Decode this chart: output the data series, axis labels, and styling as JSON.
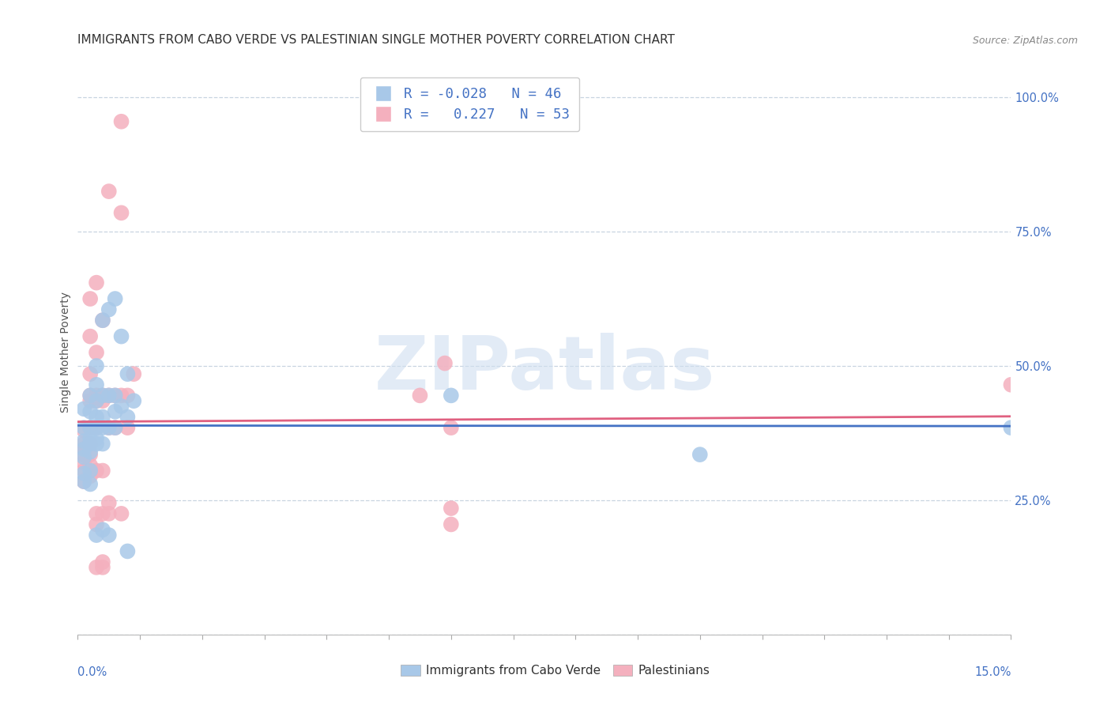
{
  "title": "IMMIGRANTS FROM CABO VERDE VS PALESTINIAN SINGLE MOTHER POVERTY CORRELATION CHART",
  "source": "Source: ZipAtlas.com",
  "ylabel": "Single Mother Poverty",
  "x_min": 0.0,
  "x_max": 0.15,
  "y_min": 0.0,
  "y_max": 1.05,
  "y_ticks": [
    0.0,
    0.25,
    0.5,
    0.75,
    1.0
  ],
  "y_tick_labels": [
    "",
    "25.0%",
    "50.0%",
    "75.0%",
    "100.0%"
  ],
  "legend_entries": [
    {
      "label": "Immigrants from Cabo Verde",
      "R": "-0.028",
      "N": "46",
      "color": "#A8C8E8"
    },
    {
      "label": "Palestinians",
      "R": "0.227",
      "N": "53",
      "color": "#F4B0BE"
    }
  ],
  "cabo_verde_color": "#A8C8E8",
  "palestinian_color": "#F4B0BE",
  "cabo_verde_line_color": "#4472C4",
  "palestinian_line_color": "#E06080",
  "watermark_text": "ZIPatlas",
  "watermark_color": "#D0DFF0",
  "background_color": "#ffffff",
  "grid_color": "#C8D4E0",
  "title_fontsize": 11,
  "axis_label_fontsize": 10,
  "tick_fontsize": 10.5,
  "cabo_verde_points": [
    [
      0.001,
      0.385
    ],
    [
      0.001,
      0.42
    ],
    [
      0.001,
      0.36
    ],
    [
      0.001,
      0.345
    ],
    [
      0.001,
      0.33
    ],
    [
      0.001,
      0.3
    ],
    [
      0.001,
      0.285
    ],
    [
      0.002,
      0.445
    ],
    [
      0.002,
      0.415
    ],
    [
      0.002,
      0.385
    ],
    [
      0.002,
      0.365
    ],
    [
      0.002,
      0.355
    ],
    [
      0.002,
      0.34
    ],
    [
      0.002,
      0.305
    ],
    [
      0.002,
      0.28
    ],
    [
      0.003,
      0.5
    ],
    [
      0.003,
      0.465
    ],
    [
      0.003,
      0.435
    ],
    [
      0.003,
      0.405
    ],
    [
      0.003,
      0.385
    ],
    [
      0.003,
      0.365
    ],
    [
      0.003,
      0.355
    ],
    [
      0.003,
      0.185
    ],
    [
      0.004,
      0.585
    ],
    [
      0.004,
      0.445
    ],
    [
      0.004,
      0.405
    ],
    [
      0.004,
      0.385
    ],
    [
      0.004,
      0.355
    ],
    [
      0.004,
      0.195
    ],
    [
      0.005,
      0.605
    ],
    [
      0.005,
      0.445
    ],
    [
      0.005,
      0.385
    ],
    [
      0.005,
      0.185
    ],
    [
      0.006,
      0.625
    ],
    [
      0.006,
      0.445
    ],
    [
      0.006,
      0.415
    ],
    [
      0.006,
      0.385
    ],
    [
      0.007,
      0.555
    ],
    [
      0.007,
      0.425
    ],
    [
      0.008,
      0.485
    ],
    [
      0.008,
      0.405
    ],
    [
      0.008,
      0.155
    ],
    [
      0.009,
      0.435
    ],
    [
      0.06,
      0.445
    ],
    [
      0.1,
      0.335
    ],
    [
      0.15,
      0.385
    ]
  ],
  "palestinian_points": [
    [
      0.001,
      0.38
    ],
    [
      0.001,
      0.355
    ],
    [
      0.001,
      0.345
    ],
    [
      0.001,
      0.335
    ],
    [
      0.001,
      0.32
    ],
    [
      0.001,
      0.305
    ],
    [
      0.001,
      0.285
    ],
    [
      0.002,
      0.625
    ],
    [
      0.002,
      0.555
    ],
    [
      0.002,
      0.485
    ],
    [
      0.002,
      0.445
    ],
    [
      0.002,
      0.435
    ],
    [
      0.002,
      0.385
    ],
    [
      0.002,
      0.355
    ],
    [
      0.002,
      0.335
    ],
    [
      0.002,
      0.315
    ],
    [
      0.002,
      0.295
    ],
    [
      0.003,
      0.655
    ],
    [
      0.003,
      0.525
    ],
    [
      0.003,
      0.445
    ],
    [
      0.003,
      0.435
    ],
    [
      0.003,
      0.385
    ],
    [
      0.003,
      0.305
    ],
    [
      0.003,
      0.225
    ],
    [
      0.003,
      0.205
    ],
    [
      0.003,
      0.125
    ],
    [
      0.004,
      0.585
    ],
    [
      0.004,
      0.445
    ],
    [
      0.004,
      0.435
    ],
    [
      0.004,
      0.305
    ],
    [
      0.004,
      0.225
    ],
    [
      0.004,
      0.135
    ],
    [
      0.004,
      0.125
    ],
    [
      0.005,
      0.825
    ],
    [
      0.005,
      0.445
    ],
    [
      0.005,
      0.385
    ],
    [
      0.005,
      0.245
    ],
    [
      0.005,
      0.225
    ],
    [
      0.006,
      0.445
    ],
    [
      0.006,
      0.385
    ],
    [
      0.007,
      0.955
    ],
    [
      0.007,
      0.785
    ],
    [
      0.007,
      0.445
    ],
    [
      0.007,
      0.225
    ],
    [
      0.008,
      0.445
    ],
    [
      0.008,
      0.385
    ],
    [
      0.009,
      0.485
    ],
    [
      0.055,
      0.445
    ],
    [
      0.059,
      0.505
    ],
    [
      0.06,
      0.385
    ],
    [
      0.06,
      0.235
    ],
    [
      0.06,
      0.205
    ],
    [
      0.15,
      0.465
    ]
  ]
}
